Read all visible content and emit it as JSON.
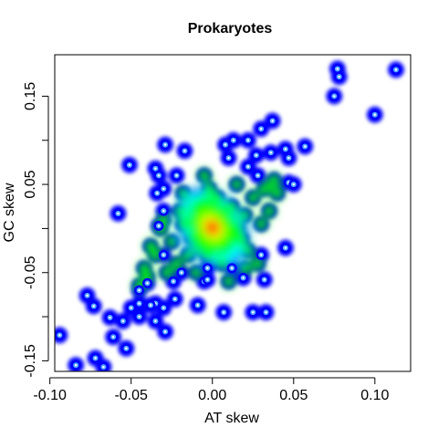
{
  "chart_data": {
    "type": "heatmap",
    "subtype": "smoothed scatter density",
    "title": "Prokaryotes",
    "xlabel": "AT skew",
    "ylabel": "GC skew",
    "xlim": [
      -0.097,
      0.122
    ],
    "ylim": [
      -0.162,
      0.197
    ],
    "x_ticks": [
      -0.1,
      -0.05,
      0.0,
      0.05,
      0.1
    ],
    "x_tick_labels": [
      "-0.10",
      "-0.05",
      "0.00",
      "0.05",
      "0.10"
    ],
    "y_ticks": [
      -0.15,
      -0.05,
      0.05,
      0.15
    ],
    "y_tick_labels": [
      "-0.15",
      "-0.05",
      "0.05",
      "0.15"
    ],
    "y_minor_ticks": [
      -0.1,
      0.0,
      0.1
    ],
    "grid": false,
    "legend": "none",
    "colors": {
      "low": "#0000ff",
      "mid_low": "#00ffff",
      "mid": "#00ff00",
      "mid_high": "#ffff00",
      "high": "#ff0000",
      "point": "#ffffff"
    },
    "density_peak": {
      "x": 0.0,
      "y": 0.001
    },
    "core_points": [
      {
        "x": -0.01,
        "y": 0.025
      },
      {
        "x": -0.005,
        "y": 0.03
      },
      {
        "x": 0.005,
        "y": 0.02
      },
      {
        "x": 0.01,
        "y": 0.01
      },
      {
        "x": -0.012,
        "y": -0.01
      },
      {
        "x": -0.008,
        "y": -0.02
      },
      {
        "x": 0.008,
        "y": -0.018
      },
      {
        "x": 0.015,
        "y": 0.0
      },
      {
        "x": -0.018,
        "y": 0.005
      },
      {
        "x": 0.003,
        "y": 0.035
      },
      {
        "x": -0.003,
        "y": -0.03
      },
      {
        "x": 0.012,
        "y": 0.025
      },
      {
        "x": -0.015,
        "y": -0.03
      },
      {
        "x": 0.018,
        "y": -0.012
      },
      {
        "x": -0.02,
        "y": 0.02
      },
      {
        "x": 0.02,
        "y": 0.015
      },
      {
        "x": -0.025,
        "y": -0.015
      },
      {
        "x": 0.022,
        "y": -0.025
      },
      {
        "x": -0.002,
        "y": 0.045
      },
      {
        "x": 0.006,
        "y": -0.04
      },
      {
        "x": -0.022,
        "y": -0.04
      },
      {
        "x": 0.025,
        "y": 0.035
      },
      {
        "x": -0.03,
        "y": 0.01
      },
      {
        "x": 0.03,
        "y": 0.005
      },
      {
        "x": -0.035,
        "y": -0.03
      },
      {
        "x": -0.028,
        "y": -0.05
      },
      {
        "x": 0.032,
        "y": 0.045
      },
      {
        "x": 0.038,
        "y": 0.055
      },
      {
        "x": -0.04,
        "y": -0.055
      },
      {
        "x": -0.045,
        "y": -0.065
      },
      {
        "x": 0.028,
        "y": -0.04
      },
      {
        "x": -0.01,
        "y": -0.05
      },
      {
        "x": 0.015,
        "y": 0.05
      },
      {
        "x": -0.005,
        "y": 0.06
      },
      {
        "x": 0.01,
        "y": -0.06
      },
      {
        "x": -0.018,
        "y": 0.04
      },
      {
        "x": 0.02,
        "y": -0.045
      },
      {
        "x": -0.032,
        "y": 0.0
      },
      {
        "x": 0.035,
        "y": 0.02
      },
      {
        "x": -0.038,
        "y": -0.02
      },
      {
        "x": 0.04,
        "y": 0.04
      },
      {
        "x": -0.042,
        "y": -0.045
      }
    ],
    "outlier_points": [
      {
        "x": 0.113,
        "y": 0.18
      },
      {
        "x": 0.077,
        "y": 0.181
      },
      {
        "x": 0.078,
        "y": 0.172
      },
      {
        "x": 0.075,
        "y": 0.15
      },
      {
        "x": 0.1,
        "y": 0.129
      },
      {
        "x": 0.057,
        "y": 0.093
      },
      {
        "x": 0.045,
        "y": 0.09
      },
      {
        "x": 0.037,
        "y": 0.122
      },
      {
        "x": 0.03,
        "y": 0.113
      },
      {
        "x": 0.013,
        "y": 0.1
      },
      {
        "x": 0.008,
        "y": 0.095
      },
      {
        "x": -0.029,
        "y": 0.095
      },
      {
        "x": -0.017,
        "y": 0.088
      },
      {
        "x": -0.051,
        "y": 0.072
      },
      {
        "x": -0.035,
        "y": 0.068
      },
      {
        "x": -0.022,
        "y": 0.06
      },
      {
        "x": -0.058,
        "y": 0.017
      },
      {
        "x": -0.034,
        "y": 0.04
      },
      {
        "x": -0.03,
        "y": 0.02
      },
      {
        "x": -0.033,
        "y": 0.003
      },
      {
        "x": -0.03,
        "y": -0.03
      },
      {
        "x": 0.047,
        "y": 0.052
      },
      {
        "x": 0.05,
        "y": 0.05
      },
      {
        "x": 0.045,
        "y": -0.022
      },
      {
        "x": 0.03,
        "y": -0.03
      },
      {
        "x": 0.032,
        "y": -0.058
      },
      {
        "x": 0.019,
        "y": -0.056
      },
      {
        "x": 0.012,
        "y": -0.045
      },
      {
        "x": -0.003,
        "y": -0.045
      },
      {
        "x": -0.005,
        "y": -0.06
      },
      {
        "x": -0.019,
        "y": -0.05
      },
      {
        "x": -0.024,
        "y": -0.06
      },
      {
        "x": -0.023,
        "y": -0.08
      },
      {
        "x": -0.03,
        "y": -0.09
      },
      {
        "x": -0.045,
        "y": -0.1
      },
      {
        "x": -0.05,
        "y": -0.09
      },
      {
        "x": -0.055,
        "y": -0.105
      },
      {
        "x": -0.045,
        "y": -0.085
      },
      {
        "x": -0.035,
        "y": -0.085
      },
      {
        "x": -0.029,
        "y": -0.117
      },
      {
        "x": -0.009,
        "y": -0.087
      },
      {
        "x": 0.007,
        "y": -0.095
      },
      {
        "x": 0.025,
        "y": -0.095
      },
      {
        "x": 0.033,
        "y": -0.095
      },
      {
        "x": -0.063,
        "y": -0.101
      },
      {
        "x": -0.077,
        "y": -0.076
      },
      {
        "x": -0.073,
        "y": -0.088
      },
      {
        "x": -0.061,
        "y": -0.123
      },
      {
        "x": -0.053,
        "y": -0.136
      },
      {
        "x": -0.072,
        "y": -0.147
      },
      {
        "x": -0.067,
        "y": -0.157
      },
      {
        "x": -0.084,
        "y": -0.155
      },
      {
        "x": -0.094,
        "y": -0.121
      },
      {
        "x": -0.038,
        "y": -0.087
      },
      {
        "x": -0.035,
        "y": -0.105
      },
      {
        "x": -0.003,
        "y": -0.058
      },
      {
        "x": 0.027,
        "y": 0.083
      },
      {
        "x": 0.022,
        "y": 0.1
      },
      {
        "x": 0.036,
        "y": 0.086
      },
      {
        "x": 0.047,
        "y": 0.08
      },
      {
        "x": -0.04,
        "y": -0.062
      },
      {
        "x": -0.045,
        "y": -0.07
      },
      {
        "x": 0.022,
        "y": 0.07
      },
      {
        "x": 0.028,
        "y": 0.06
      },
      {
        "x": 0.01,
        "y": 0.08
      },
      {
        "x": -0.03,
        "y": 0.045
      },
      {
        "x": -0.033,
        "y": 0.06
      }
    ]
  }
}
